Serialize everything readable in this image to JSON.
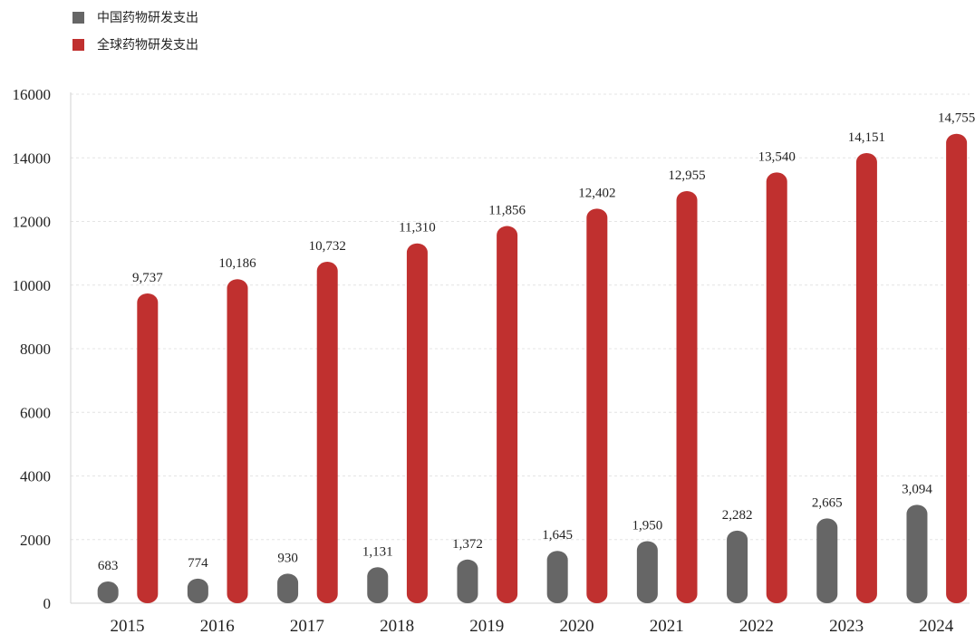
{
  "chart_data": {
    "type": "bar",
    "categories": [
      "2015",
      "2016",
      "2017",
      "2018",
      "2019",
      "2020",
      "2021",
      "2022",
      "2023",
      "2024"
    ],
    "series": [
      {
        "name": "中国药物研发支出",
        "color": "#666666",
        "values": [
          683,
          774,
          930,
          1131,
          1372,
          1645,
          1950,
          2282,
          2665,
          3094
        ],
        "labels": [
          "683",
          "774",
          "930",
          "1,131",
          "1,372",
          "1,645",
          "1,950",
          "2,282",
          "2,665",
          "3,094"
        ]
      },
      {
        "name": "全球药物研发支出",
        "color": "#c0302f",
        "values": [
          9737,
          10186,
          10732,
          11310,
          11856,
          12402,
          12955,
          13540,
          14151,
          14755
        ],
        "labels": [
          "9,737",
          "10,186",
          "10,732",
          "11,310",
          "11,856",
          "12,402",
          "12,955",
          "13,540",
          "14,151",
          "14,755"
        ]
      }
    ],
    "yticks": [
      "0",
      "2000",
      "4000",
      "6000",
      "8000",
      "10000",
      "12000",
      "14000",
      "16000"
    ],
    "ylim": [
      0,
      16000
    ],
    "grid": true,
    "legend_position": "top-left"
  }
}
